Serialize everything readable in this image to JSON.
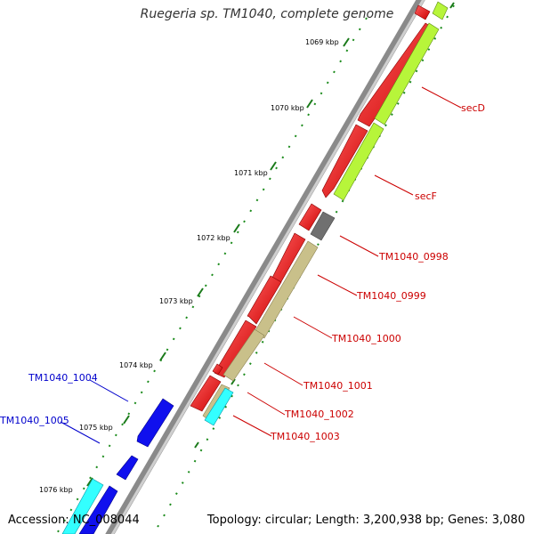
{
  "title": "Ruegeria sp. TM1040, complete genome",
  "accession": "Accession: NC_008044",
  "summary": "Topology: circular; Length: 3,200,938 bp; Genes: 3,080",
  "scale_labels": [
    "1069 kbp",
    "1070 kbp",
    "1071 kbp",
    "1072 kbp",
    "1073 kbp",
    "1074 kbp",
    "1075 kbp",
    "1076 kbp"
  ],
  "gene_labels": {
    "secD": "secD",
    "secF": "secF",
    "g0998": "TM1040_0998",
    "g0999": "TM1040_0999",
    "g1000": "TM1040_1000",
    "g1001": "TM1040_1001",
    "g1002": "TM1040_1002",
    "g1003": "TM1040_1003",
    "g1004": "TM1040_1004",
    "g1005": "TM1040_1005"
  },
  "colors": {
    "backbone": "#888888",
    "cds_forward": "#ff0000",
    "secD_feature": "#aaff33",
    "other_feature": "#c8bf80",
    "pseudo": "#777777",
    "reverse_cds": "#0000ff",
    "reverse_feature": "#33ffff",
    "tick": "#008000",
    "label_forward": "#cc0000",
    "label_reverse": "#0000cc"
  }
}
